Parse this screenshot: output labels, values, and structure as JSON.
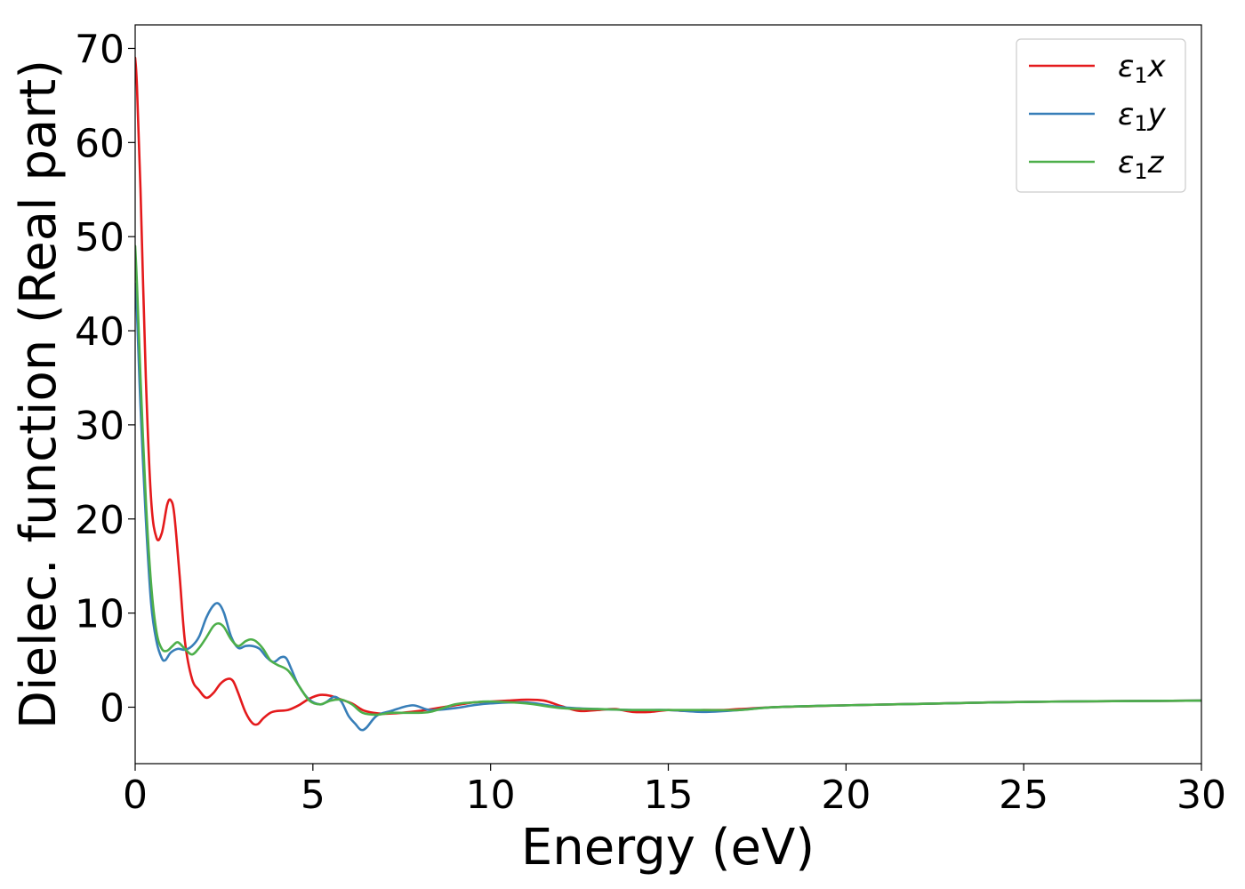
{
  "chart_data": {
    "type": "line",
    "xlabel": "Energy (eV)",
    "ylabel": "Dielec. function (Real part)",
    "xlim": [
      0,
      30
    ],
    "ylim": [
      -6,
      72.5
    ],
    "xticks": [
      0,
      5,
      10,
      15,
      20,
      25,
      30
    ],
    "yticks": [
      0,
      10,
      20,
      30,
      40,
      50,
      60,
      70
    ],
    "grid": false,
    "legend_position": "top-right",
    "series": [
      {
        "name": "ε₁x",
        "legend_symbol": "ε",
        "legend_sub": "1",
        "legend_suffix": "x",
        "color": "#e41a1c",
        "x": [
          0,
          0.05,
          0.15,
          0.3,
          0.45,
          0.6,
          0.75,
          0.9,
          1.0,
          1.1,
          1.25,
          1.4,
          1.6,
          1.8,
          2.0,
          2.2,
          2.4,
          2.6,
          2.75,
          2.9,
          3.1,
          3.3,
          3.45,
          3.6,
          3.8,
          4.0,
          4.3,
          4.6,
          4.9,
          5.2,
          5.5,
          5.8,
          6.1,
          6.4,
          6.7,
          7.0,
          7.5,
          8.0,
          8.5,
          9.0,
          9.5,
          10.0,
          10.5,
          11.0,
          11.5,
          12.0,
          12.5,
          13.0,
          13.5,
          14.0,
          14.5,
          15.0,
          15.5,
          16.0,
          16.5,
          17.0,
          18.0,
          19.0,
          20.0,
          22.0,
          24.0,
          26.0,
          28.0,
          30.0
        ],
        "y": [
          69,
          66,
          55,
          35,
          22,
          18,
          18.5,
          21.5,
          22,
          20.5,
          14,
          7,
          3,
          1.8,
          1,
          1.5,
          2.5,
          3.0,
          2.8,
          1.5,
          -0.5,
          -1.7,
          -1.8,
          -1.2,
          -0.6,
          -0.4,
          -0.3,
          0.2,
          0.9,
          1.3,
          1.2,
          0.8,
          0.4,
          -0.3,
          -0.6,
          -0.7,
          -0.6,
          -0.4,
          -0.1,
          0.2,
          0.5,
          0.6,
          0.7,
          0.8,
          0.7,
          0.1,
          -0.4,
          -0.3,
          -0.2,
          -0.5,
          -0.5,
          -0.3,
          -0.4,
          -0.3,
          -0.3,
          -0.2,
          0.0,
          0.1,
          0.2,
          0.35,
          0.5,
          0.6,
          0.65,
          0.7
        ]
      },
      {
        "name": "ε₁y",
        "legend_symbol": "ε",
        "legend_sub": "1",
        "legend_suffix": "y",
        "color": "#377eb8",
        "x": [
          0,
          0.05,
          0.15,
          0.3,
          0.45,
          0.6,
          0.75,
          0.85,
          1.0,
          1.2,
          1.4,
          1.6,
          1.8,
          2.0,
          2.2,
          2.35,
          2.5,
          2.7,
          2.9,
          3.1,
          3.3,
          3.5,
          3.7,
          3.9,
          4.1,
          4.25,
          4.4,
          4.6,
          4.9,
          5.2,
          5.4,
          5.6,
          5.8,
          6.0,
          6.2,
          6.35,
          6.5,
          6.8,
          7.2,
          7.8,
          8.3,
          9.0,
          9.5,
          10.0,
          11.0,
          12.0,
          13.0,
          14.0,
          15.0,
          16.0,
          17.0,
          18.0,
          20.0,
          22.0,
          24.0,
          26.0,
          28.0,
          30.0
        ],
        "y": [
          45,
          42,
          32,
          20,
          11,
          7,
          5.2,
          5.0,
          5.8,
          6.2,
          6.1,
          6.5,
          7.5,
          9.5,
          10.8,
          11.0,
          10.0,
          7.5,
          6.3,
          6.5,
          6.5,
          6.2,
          5.3,
          4.8,
          5.3,
          5.2,
          4.0,
          2.3,
          0.8,
          0.3,
          0.6,
          1.1,
          0.6,
          -0.9,
          -1.8,
          -2.4,
          -2.2,
          -0.9,
          -0.4,
          0.2,
          -0.3,
          -0.1,
          0.2,
          0.4,
          0.5,
          0.0,
          -0.2,
          -0.3,
          -0.3,
          -0.5,
          -0.3,
          0.0,
          0.2,
          0.35,
          0.5,
          0.6,
          0.65,
          0.7
        ]
      },
      {
        "name": "ε₁z",
        "legend_symbol": "ε",
        "legend_sub": "1",
        "legend_suffix": "z",
        "color": "#4daf4a",
        "x": [
          0,
          0.05,
          0.15,
          0.3,
          0.45,
          0.6,
          0.75,
          0.9,
          1.05,
          1.2,
          1.4,
          1.6,
          1.8,
          2.0,
          2.2,
          2.35,
          2.5,
          2.7,
          2.9,
          3.1,
          3.25,
          3.4,
          3.6,
          3.8,
          4.0,
          4.3,
          4.6,
          4.9,
          5.2,
          5.5,
          5.8,
          6.1,
          6.4,
          6.8,
          7.2,
          7.8,
          8.3,
          9.0,
          9.5,
          10.0,
          11.0,
          12.0,
          13.0,
          14.0,
          15.0,
          16.0,
          17.0,
          18.0,
          20.0,
          22.0,
          24.0,
          26.0,
          28.0,
          30.0
        ],
        "y": [
          49,
          45,
          35,
          22,
          13,
          8,
          6.2,
          6.0,
          6.5,
          6.9,
          6.2,
          5.6,
          6.3,
          7.4,
          8.6,
          8.9,
          8.5,
          7.2,
          6.5,
          7.0,
          7.2,
          7.0,
          6.2,
          5.0,
          4.5,
          3.9,
          2.3,
          0.7,
          0.3,
          0.7,
          0.8,
          0.3,
          -0.6,
          -0.8,
          -0.6,
          -0.6,
          -0.5,
          0.3,
          0.5,
          0.6,
          0.4,
          -0.1,
          -0.2,
          -0.3,
          -0.3,
          -0.3,
          -0.3,
          0.0,
          0.2,
          0.35,
          0.5,
          0.6,
          0.65,
          0.7
        ]
      }
    ]
  }
}
